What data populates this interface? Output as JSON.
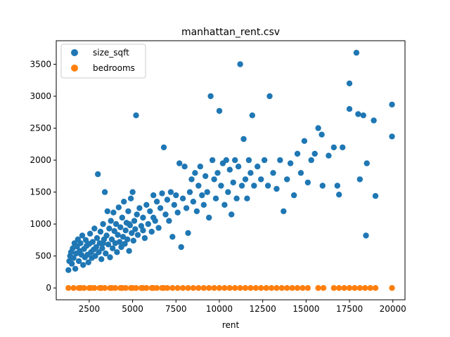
{
  "chart_data": {
    "type": "scatter",
    "title": "manhattan_rent.csv",
    "xlabel": "rent",
    "ylabel": "",
    "xlim": [
      600,
      20700
    ],
    "ylim": [
      -185,
      3868
    ],
    "xticks": [
      2500,
      5000,
      7500,
      10000,
      12500,
      15000,
      17500,
      20000
    ],
    "yticks": [
      0,
      500,
      1000,
      1500,
      2000,
      2500,
      3000,
      3500
    ],
    "grid": false,
    "legend_position": "top-left",
    "series": [
      {
        "name": "size_sqft",
        "color": "#1f77b4",
        "points": [
          [
            1300,
            280
          ],
          [
            1350,
            420
          ],
          [
            1400,
            500
          ],
          [
            1450,
            560
          ],
          [
            1500,
            380
          ],
          [
            1550,
            620
          ],
          [
            1600,
            470
          ],
          [
            1650,
            700
          ],
          [
            1700,
            300
          ],
          [
            1750,
            540
          ],
          [
            1800,
            650
          ],
          [
            1850,
            760
          ],
          [
            1900,
            420
          ],
          [
            1950,
            580
          ],
          [
            2000,
            700
          ],
          [
            2050,
            520
          ],
          [
            2100,
            820
          ],
          [
            2150,
            360
          ],
          [
            2200,
            610
          ],
          [
            2250,
            480
          ],
          [
            2300,
            750
          ],
          [
            2350,
            660
          ],
          [
            2400,
            520
          ],
          [
            2450,
            400
          ],
          [
            2500,
            690
          ],
          [
            2550,
            850
          ],
          [
            2600,
            560
          ],
          [
            2650,
            470
          ],
          [
            2700,
            720
          ],
          [
            2750,
            600
          ],
          [
            2800,
            930
          ],
          [
            2850,
            500
          ],
          [
            2900,
            640
          ],
          [
            2950,
            780
          ],
          [
            3000,
            1780
          ],
          [
            3050,
            560
          ],
          [
            3100,
            700
          ],
          [
            3150,
            880
          ],
          [
            3200,
            450
          ],
          [
            3250,
            620
          ],
          [
            3300,
            1000
          ],
          [
            3350,
            760
          ],
          [
            3400,
            1500
          ],
          [
            3450,
            540
          ],
          [
            3500,
            820
          ],
          [
            3550,
            1200
          ],
          [
            3600,
            680
          ],
          [
            3650,
            930
          ],
          [
            3700,
            480
          ],
          [
            3750,
            1050
          ],
          [
            3800,
            760
          ],
          [
            3850,
            620
          ],
          [
            3900,
            1180
          ],
          [
            3950,
            890
          ],
          [
            4000,
            700
          ],
          [
            4050,
            1000
          ],
          [
            4100,
            560
          ],
          [
            4150,
            830
          ],
          [
            4200,
            1260
          ],
          [
            4250,
            720
          ],
          [
            4300,
            950
          ],
          [
            4350,
            640
          ],
          [
            4400,
            1100
          ],
          [
            4450,
            800
          ],
          [
            4500,
            1350
          ],
          [
            4550,
            690
          ],
          [
            4600,
            900
          ],
          [
            4650,
            1020
          ],
          [
            4700,
            760
          ],
          [
            4750,
            1200
          ],
          [
            4800,
            580
          ],
          [
            4850,
            980
          ],
          [
            4900,
            1400
          ],
          [
            4950,
            860
          ],
          [
            5000,
            1500
          ],
          [
            5050,
            740
          ],
          [
            5100,
            1050
          ],
          [
            5150,
            920
          ],
          [
            5200,
            2700
          ],
          [
            5250,
            1150
          ],
          [
            5300,
            830
          ],
          [
            5400,
            1250
          ],
          [
            5500,
            970
          ],
          [
            5600,
            1100
          ],
          [
            5700,
            780
          ],
          [
            5800,
            1300
          ],
          [
            5900,
            1000
          ],
          [
            6000,
            1200
          ],
          [
            6100,
            880
          ],
          [
            6200,
            1450
          ],
          [
            6300,
            1050
          ],
          [
            6400,
            1350
          ],
          [
            6500,
            940
          ],
          [
            6600,
            1250
          ],
          [
            6700,
            1480
          ],
          [
            6800,
            2200
          ],
          [
            6900,
            1150
          ],
          [
            7000,
            1380
          ],
          [
            7100,
            1050
          ],
          [
            7200,
            1500
          ],
          [
            7300,
            800
          ],
          [
            7400,
            1300
          ],
          [
            7500,
            1450
          ],
          [
            7600,
            1180
          ],
          [
            7700,
            1950
          ],
          [
            7800,
            640
          ],
          [
            7900,
            1400
          ],
          [
            8000,
            1900
          ],
          [
            8100,
            1250
          ],
          [
            8200,
            860
          ],
          [
            8300,
            1500
          ],
          [
            8400,
            1700
          ],
          [
            8500,
            1350
          ],
          [
            8600,
            1800
          ],
          [
            8700,
            1200
          ],
          [
            8800,
            1600
          ],
          [
            8900,
            1900
          ],
          [
            9000,
            1450
          ],
          [
            9100,
            1300
          ],
          [
            9200,
            1750
          ],
          [
            9300,
            1500
          ],
          [
            9400,
            1100
          ],
          [
            9500,
            3000
          ],
          [
            9600,
            2000
          ],
          [
            9700,
            1700
          ],
          [
            9800,
            1400
          ],
          [
            9900,
            1800
          ],
          [
            10000,
            2770
          ],
          [
            10100,
            1600
          ],
          [
            10200,
            1950
          ],
          [
            10300,
            1300
          ],
          [
            10400,
            2000
          ],
          [
            10500,
            1500
          ],
          [
            10600,
            1850
          ],
          [
            10700,
            1150
          ],
          [
            10800,
            1650
          ],
          [
            10900,
            2000
          ],
          [
            11000,
            1400
          ],
          [
            11100,
            1900
          ],
          [
            11200,
            3500
          ],
          [
            11300,
            1600
          ],
          [
            11400,
            2330
          ],
          [
            11500,
            1700
          ],
          [
            11600,
            1400
          ],
          [
            11700,
            2000
          ],
          [
            11800,
            1800
          ],
          [
            11900,
            2700
          ],
          [
            12000,
            1600
          ],
          [
            12200,
            1900
          ],
          [
            12400,
            1700
          ],
          [
            12600,
            2000
          ],
          [
            12800,
            1600
          ],
          [
            12900,
            3000
          ],
          [
            13100,
            1800
          ],
          [
            13300,
            1550
          ],
          [
            13500,
            2000
          ],
          [
            13700,
            1200
          ],
          [
            13900,
            1700
          ],
          [
            14100,
            1950
          ],
          [
            14300,
            1450
          ],
          [
            14500,
            2100
          ],
          [
            14700,
            1800
          ],
          [
            14900,
            2300
          ],
          [
            15100,
            1650
          ],
          [
            15300,
            2000
          ],
          [
            15500,
            2100
          ],
          [
            15700,
            2500
          ],
          [
            15900,
            2400
          ],
          [
            15950,
            1600
          ],
          [
            16300,
            2070
          ],
          [
            16600,
            2200
          ],
          [
            16800,
            1600
          ],
          [
            16900,
            1460
          ],
          [
            17100,
            2200
          ],
          [
            17500,
            3200
          ],
          [
            17500,
            2800
          ],
          [
            17900,
            3680
          ],
          [
            18000,
            2720
          ],
          [
            18100,
            1700
          ],
          [
            18300,
            2700
          ],
          [
            18450,
            820
          ],
          [
            18500,
            1950
          ],
          [
            18900,
            2620
          ],
          [
            19000,
            1440
          ],
          [
            19950,
            2870
          ],
          [
            19950,
            2370
          ],
          [
            5600,
            900
          ],
          [
            6200,
            1100
          ],
          [
            4800,
            1000
          ],
          [
            3300,
            700
          ]
        ]
      },
      {
        "name": "bedrooms",
        "color": "#ff7f0e",
        "points": [
          [
            1300,
            0
          ],
          [
            1600,
            0
          ],
          [
            1900,
            0
          ],
          [
            2200,
            0
          ],
          [
            2500,
            0
          ],
          [
            2800,
            0
          ],
          [
            3100,
            0
          ],
          [
            3400,
            0
          ],
          [
            3700,
            0
          ],
          [
            4000,
            0
          ],
          [
            4300,
            0
          ],
          [
            4600,
            0
          ],
          [
            4900,
            0
          ],
          [
            5200,
            0
          ],
          [
            5500,
            0
          ],
          [
            5800,
            0
          ],
          [
            6100,
            0
          ],
          [
            6400,
            0
          ],
          [
            6700,
            0
          ],
          [
            7000,
            0
          ],
          [
            7300,
            0
          ],
          [
            7600,
            0
          ],
          [
            7900,
            0
          ],
          [
            8200,
            0
          ],
          [
            8500,
            0
          ],
          [
            8800,
            0
          ],
          [
            9100,
            0
          ],
          [
            9400,
            0
          ],
          [
            9700,
            0
          ],
          [
            10000,
            0
          ],
          [
            10300,
            0
          ],
          [
            10600,
            0
          ],
          [
            10900,
            0
          ],
          [
            11200,
            0
          ],
          [
            11500,
            0
          ],
          [
            11800,
            0
          ],
          [
            12100,
            0
          ],
          [
            12400,
            0
          ],
          [
            12700,
            0
          ],
          [
            13000,
            0
          ],
          [
            13300,
            0
          ],
          [
            13600,
            0
          ],
          [
            13900,
            0
          ],
          [
            14200,
            0
          ],
          [
            14500,
            0
          ],
          [
            14800,
            0
          ],
          [
            15100,
            0
          ],
          [
            15700,
            0
          ],
          [
            16000,
            0
          ],
          [
            16600,
            0
          ],
          [
            16900,
            0
          ],
          [
            17200,
            0
          ],
          [
            17500,
            0
          ],
          [
            17800,
            0
          ],
          [
            18100,
            0
          ],
          [
            18400,
            0
          ],
          [
            18700,
            0
          ],
          [
            19000,
            0
          ],
          [
            19950,
            0
          ],
          [
            2000,
            0
          ],
          [
            2600,
            0
          ],
          [
            3200,
            0
          ],
          [
            3800,
            0
          ],
          [
            4400,
            0
          ],
          [
            5000,
            0
          ],
          [
            5600,
            0
          ],
          [
            6200,
            0
          ],
          [
            6800,
            0
          ]
        ]
      }
    ]
  }
}
